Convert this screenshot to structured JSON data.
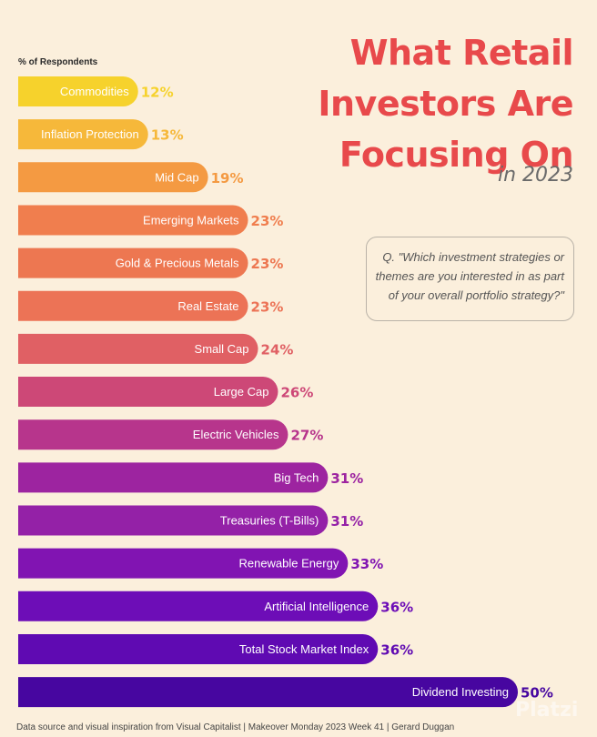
{
  "header": {
    "axis_label": "% of Respondents",
    "title_lines": [
      "What Retail",
      "Investors Are",
      "Focusing On"
    ],
    "subtitle": "in 2023",
    "question": "Q. \"Which investment strategies or themes are you interested in as part of your overall portfolio strategy?\""
  },
  "footer": {
    "source": "Data source and visual inspiration from Visual Capitalist  |  Makeover Monday 2023 Week 41  |  Gerard Duggan",
    "watermark": "Platzi"
  },
  "chart_data": {
    "type": "bar",
    "orientation": "horizontal",
    "title": "What Retail Investors Are Focusing On in 2023",
    "xlabel": "% of Respondents",
    "ylabel": "",
    "xlim": [
      0,
      50
    ],
    "value_suffix": "%",
    "categories": [
      "Commodities",
      "Inflation Protection",
      "Mid Cap",
      "Emerging Markets",
      "Gold & Precious Metals",
      "Real Estate",
      "Small Cap",
      "Large Cap",
      "Electric Vehicles",
      "Big Tech",
      "Treasuries (T-Bills)",
      "Renewable Energy",
      "Artificial Intelligence",
      "Total Stock Market Index",
      "Dividend Investing"
    ],
    "values": [
      12,
      13,
      19,
      23,
      23,
      23,
      24,
      26,
      27,
      31,
      31,
      33,
      36,
      36,
      50
    ],
    "colors": [
      "#f6d22c",
      "#f6b83a",
      "#f49a42",
      "#f07e4e",
      "#ed7751",
      "#ec7356",
      "#e06064",
      "#cd4877",
      "#b7358c",
      "#9d24a0",
      "#9421a7",
      "#8114b2",
      "#6d0db7",
      "#5f0ab2",
      "#4706a0"
    ]
  }
}
